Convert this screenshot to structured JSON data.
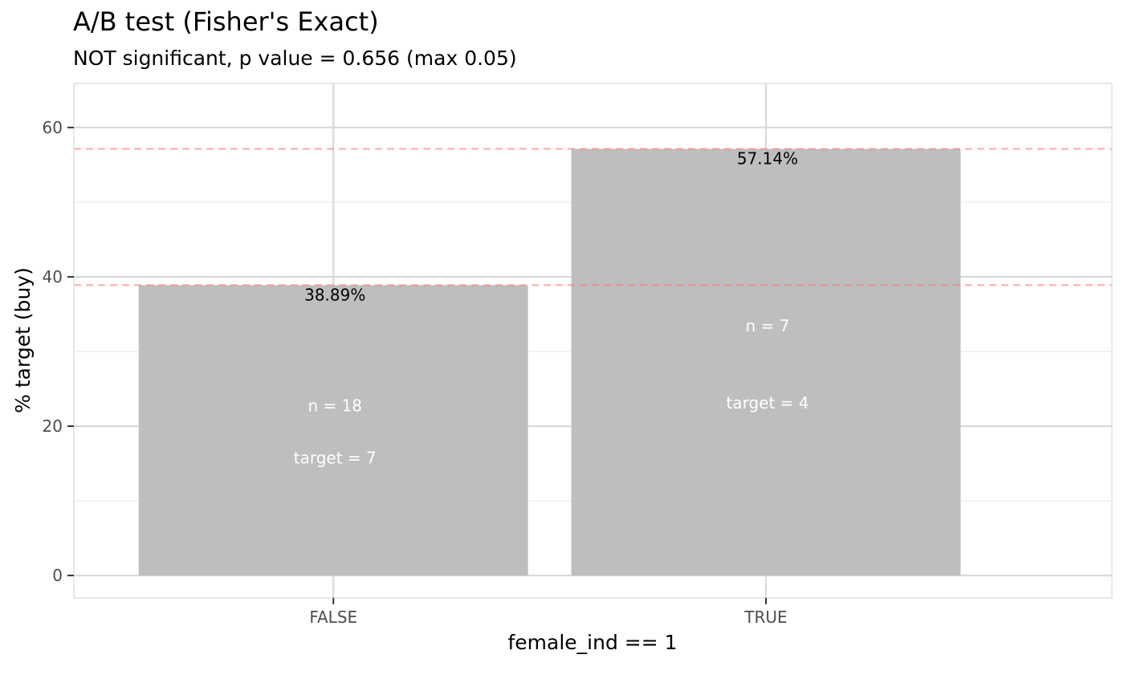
{
  "chart_data": {
    "type": "bar",
    "title": "A/B test (Fisher's Exact)",
    "subtitle": "NOT significant, p value = 0.656 (max 0.05)",
    "xlabel": "female_ind == 1",
    "ylabel": "% target (buy)",
    "categories": [
      "FALSE",
      "TRUE"
    ],
    "values": [
      38.89,
      57.14
    ],
    "value_labels": [
      "38.89%",
      "57.14%"
    ],
    "n_labels": [
      "n = 18",
      "n =  7"
    ],
    "target_labels": [
      "target = 7",
      "target = 4"
    ],
    "reference_lines": [
      38.89,
      57.14
    ],
    "y_ticks": [
      0,
      20,
      40,
      60
    ],
    "ylim": [
      -3,
      65.9
    ],
    "grid": true,
    "colors": {
      "bar": "#bebebe",
      "reference_line": "#f8766d",
      "grid_major": "#d9d9d9",
      "grid_minor": "#ebebeb",
      "panel_border": "#d9d9d9",
      "inside_text": "#ffffff",
      "value_text": "#000000",
      "axis_text": "#4d4d4d"
    }
  }
}
